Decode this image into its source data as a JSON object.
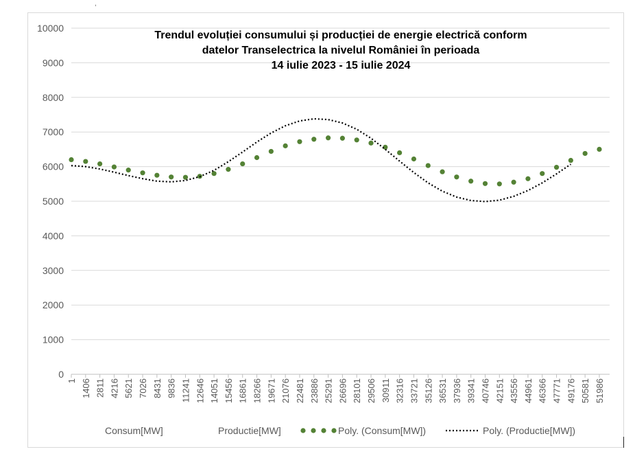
{
  "corner_mark": ",",
  "chart_data": {
    "type": "line",
    "title_lines": [
      "Trendul evoluției consumului și producției de energie electrică conform",
      "datelor Transelectrica la nivelul României în perioada",
      "14 iulie 2023 - 15 iulie 2024"
    ],
    "ylim": [
      0,
      10000
    ],
    "yticks": [
      0,
      1000,
      2000,
      3000,
      4000,
      5000,
      6000,
      7000,
      8000,
      9000,
      10000
    ],
    "xlim": [
      1,
      53000
    ],
    "xticks": [
      1,
      1406,
      2811,
      4216,
      5621,
      7026,
      8431,
      9836,
      11241,
      12646,
      14051,
      15456,
      16861,
      18266,
      19671,
      21076,
      22481,
      23886,
      25291,
      26696,
      28101,
      29506,
      30911,
      32316,
      33721,
      35126,
      36531,
      37936,
      39341,
      40746,
      42151,
      43556,
      44961,
      46366,
      47771,
      49176,
      50581,
      51986
    ],
    "grid": true,
    "legend_position": "bottom",
    "legend": [
      "Consum[MW]",
      "Productie[MW]",
      "Poly. (Consum[MW])",
      "Poly. (Productie[MW])"
    ],
    "series": [
      {
        "name": "Poly. (Consum[MW])",
        "style": "round-dots",
        "color": "#548235",
        "points": [
          [
            1,
            6200
          ],
          [
            1406,
            6150
          ],
          [
            2811,
            6080
          ],
          [
            4216,
            5990
          ],
          [
            5621,
            5900
          ],
          [
            7026,
            5820
          ],
          [
            8431,
            5750
          ],
          [
            9836,
            5700
          ],
          [
            11241,
            5690
          ],
          [
            12646,
            5720
          ],
          [
            14051,
            5800
          ],
          [
            15456,
            5920
          ],
          [
            16861,
            6080
          ],
          [
            18266,
            6260
          ],
          [
            19671,
            6440
          ],
          [
            21076,
            6600
          ],
          [
            22481,
            6720
          ],
          [
            23886,
            6790
          ],
          [
            25291,
            6830
          ],
          [
            26696,
            6820
          ],
          [
            28101,
            6770
          ],
          [
            29506,
            6680
          ],
          [
            30911,
            6560
          ],
          [
            32316,
            6400
          ],
          [
            33721,
            6220
          ],
          [
            35126,
            6030
          ],
          [
            36531,
            5850
          ],
          [
            37936,
            5700
          ],
          [
            39341,
            5580
          ],
          [
            40746,
            5510
          ],
          [
            42151,
            5500
          ],
          [
            43556,
            5550
          ],
          [
            44961,
            5650
          ],
          [
            46366,
            5800
          ],
          [
            47771,
            5980
          ],
          [
            49176,
            6180
          ],
          [
            50581,
            6380
          ],
          [
            51986,
            6500
          ]
        ]
      },
      {
        "name": "Poly. (Productie[MW])",
        "style": "dotted",
        "color": "#000000",
        "points": [
          [
            1,
            6030
          ],
          [
            1406,
            6000
          ],
          [
            2811,
            5930
          ],
          [
            4216,
            5840
          ],
          [
            5621,
            5740
          ],
          [
            7026,
            5650
          ],
          [
            8431,
            5580
          ],
          [
            9836,
            5560
          ],
          [
            11241,
            5600
          ],
          [
            12646,
            5710
          ],
          [
            14051,
            5890
          ],
          [
            15456,
            6140
          ],
          [
            16861,
            6420
          ],
          [
            18266,
            6710
          ],
          [
            19671,
            6970
          ],
          [
            21076,
            7180
          ],
          [
            22481,
            7320
          ],
          [
            23886,
            7380
          ],
          [
            25291,
            7360
          ],
          [
            26696,
            7260
          ],
          [
            28101,
            7080
          ],
          [
            29506,
            6820
          ],
          [
            30911,
            6500
          ],
          [
            32316,
            6160
          ],
          [
            33721,
            5830
          ],
          [
            35126,
            5530
          ],
          [
            36531,
            5290
          ],
          [
            37936,
            5120
          ],
          [
            39341,
            5020
          ],
          [
            40746,
            4990
          ],
          [
            42151,
            5030
          ],
          [
            43556,
            5140
          ],
          [
            44961,
            5310
          ],
          [
            46366,
            5530
          ],
          [
            47771,
            5790
          ],
          [
            49176,
            6070
          ]
        ]
      }
    ]
  }
}
